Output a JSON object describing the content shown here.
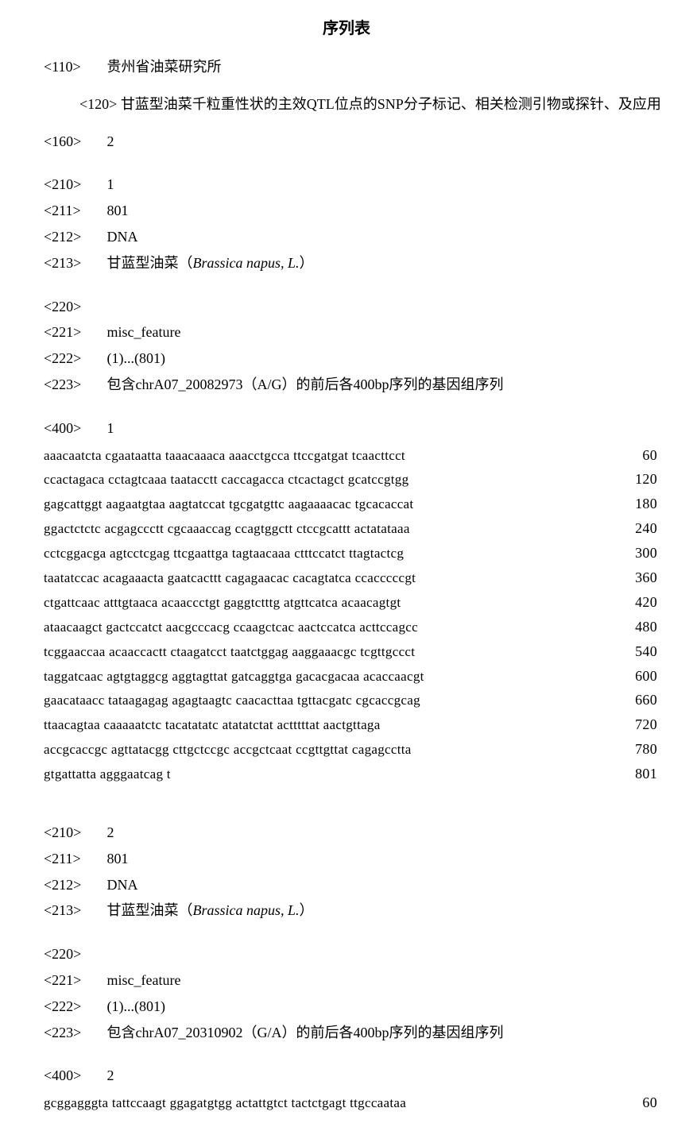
{
  "title": "序列表",
  "header": {
    "tag110": "<110>",
    "val110": "贵州省油菜研究所",
    "tag120": "<120>",
    "val120": "甘蓝型油菜千粒重性状的主效QTL位点的SNP分子标记、相关检测引物或探针、及应用",
    "tag160": "<160>",
    "val160": "2"
  },
  "seq1": {
    "tag210": "<210>",
    "val210": "1",
    "tag211": "<211>",
    "val211": "801",
    "tag212": "<212>",
    "val212": "DNA",
    "tag213": "<213>",
    "val213_a": "甘蓝型油菜（",
    "val213_b": "Brassica napus, L.",
    "val213_c": "）",
    "tag220": "<220>",
    "tag221": "<221>",
    "val221": "misc_feature",
    "tag222": "<222>",
    "val222": "(1)...(801)",
    "tag223": "<223>",
    "val223": "包含chrA07_20082973（A/G）的前后各400bp序列的基因组序列",
    "tag400": "<400>",
    "val400": "1",
    "lines": [
      {
        "t": "aaacaatcta cgaataatta taaacaaaca aaacctgcca ttccgatgat tcaacttcct",
        "n": "60"
      },
      {
        "t": "ccactagaca cctagtcaaa taatacctt caccagacca ctcactagct gcatccgtgg",
        "n": "120"
      },
      {
        "t": "gagcattggt aagaatgtaa aagtatccat tgcgatgttc aagaaaacac tgcacaccat",
        "n": "180"
      },
      {
        "t": "ggactctctc acgagccctt cgcaaaccag ccagtggctt ctccgcattt actatataaa",
        "n": "240"
      },
      {
        "t": "cctcggacga agtcctcgag ttcgaattga tagtaacaaa ctttccatct ttagtactcg",
        "n": "300"
      },
      {
        "t": "taatatccac acagaaacta gaatcacttt cagagaacac cacagtatca ccacccccgt",
        "n": "360"
      },
      {
        "t": "ctgattcaac atttgtaaca acaaccctgt gaggtctttg atgttcatca acaacagtgt",
        "n": "420"
      },
      {
        "t": "ataacaagct gactccatct aacgcccacg ccaagctcac aactccatca acttccagcc",
        "n": "480"
      },
      {
        "t": "tcggaaccaa acaaccactt ctaagatcct taatctggag aaggaaacgc tcgttgccct",
        "n": "540"
      },
      {
        "t": "taggatcaac agtgtaggcg aggtagttat gatcaggtga gacacgacaa acaccaacgt",
        "n": "600"
      },
      {
        "t": "gaacataacc tataagagag agagtaagtc caacacttaa tgttacgatc cgcaccgcag",
        "n": "660"
      },
      {
        "t": "ttaacagtaa caaaaatctc tacatatatc atatatctat actttttat aactgttaga",
        "n": "720"
      },
      {
        "t": "accgcaccgc agttatacgg cttgctccgc accgctcaat ccgttgttat cagagcctta",
        "n": "780"
      },
      {
        "t": "gtgattatta agggaatcag t",
        "n": "801"
      }
    ]
  },
  "seq2": {
    "tag210": "<210>",
    "val210": "2",
    "tag211": "<211>",
    "val211": "801",
    "tag212": "<212>",
    "val212": "DNA",
    "tag213": "<213>",
    "val213_a": "甘蓝型油菜（",
    "val213_b": "Brassica napus, L.",
    "val213_c": "）",
    "tag220": "<220>",
    "tag221": "<221>",
    "val221": "misc_feature",
    "tag222": "<222>",
    "val222": "(1)...(801)",
    "tag223": "<223>",
    "val223": "包含chrA07_20310902（G/A）的前后各400bp序列的基因组序列",
    "tag400": "<400>",
    "val400": "2",
    "lines": [
      {
        "t": "gcggagggta tattccaagt ggagatgtgg actattgtct tactctgagt ttgccaataa",
        "n": "60"
      }
    ]
  }
}
